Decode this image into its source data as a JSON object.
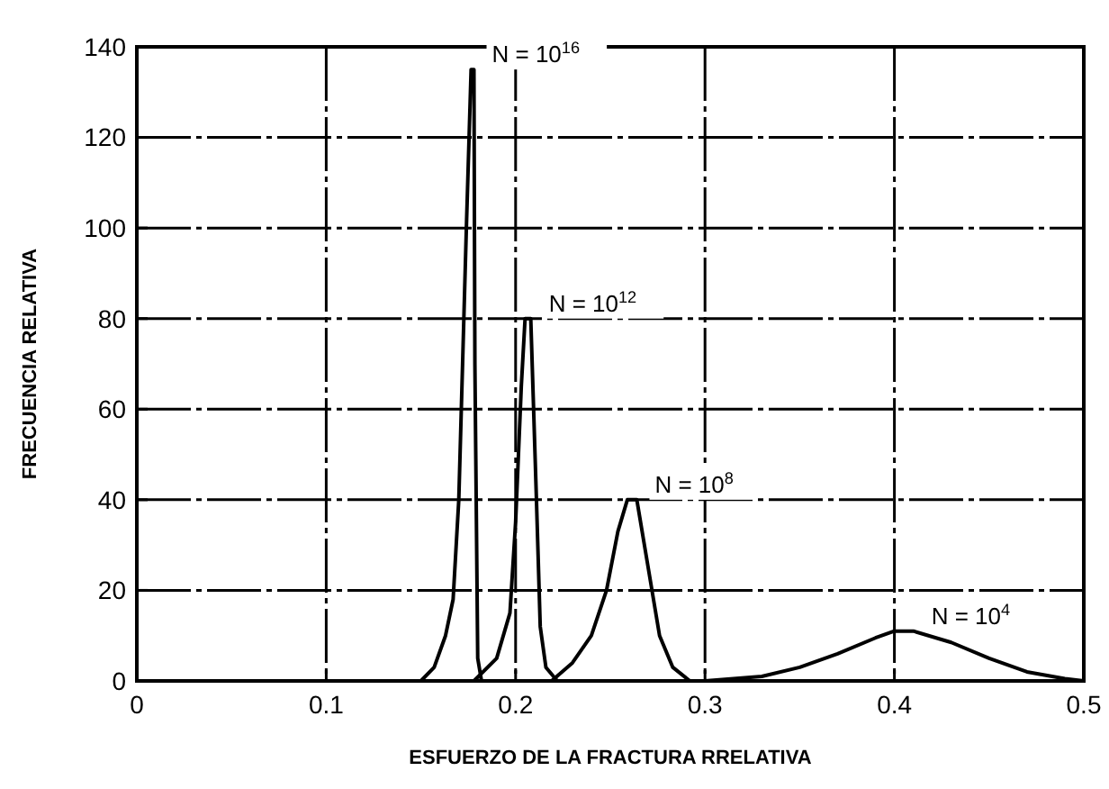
{
  "chart_data": {
    "type": "line",
    "xlabel": "ESFUERZO DE LA FRACTURA RRELATIVA",
    "ylabel": "FRECUENCIA RELATIVA",
    "xlim": [
      0,
      0.5
    ],
    "ylim": [
      0,
      140
    ],
    "xticks": [
      0,
      0.1,
      0.2,
      0.3,
      0.4,
      0.5
    ],
    "yticks": [
      0,
      20,
      40,
      60,
      80,
      100,
      120,
      140
    ],
    "grid": true,
    "line_style": "solid",
    "marker": "none",
    "series": [
      {
        "color": "#000000",
        "x": [
          0.15,
          0.157,
          0.163,
          0.167,
          0.17,
          0.174,
          0.1765,
          0.178,
          0.1785,
          0.18,
          0.182
        ],
        "values": [
          0,
          3,
          10,
          18,
          40,
          100,
          135,
          135,
          70,
          5,
          0
        ]
      },
      {
        "color": "#000000",
        "x": [
          0.178,
          0.19,
          0.197,
          0.2,
          0.203,
          0.205,
          0.208,
          0.211,
          0.213,
          0.216,
          0.222
        ],
        "values": [
          0,
          5,
          15,
          35,
          65,
          80,
          80,
          40,
          12,
          3,
          0
        ]
      },
      {
        "color": "#000000",
        "x": [
          0.219,
          0.23,
          0.24,
          0.248,
          0.254,
          0.259,
          0.264,
          0.27,
          0.276,
          0.283,
          0.292
        ],
        "values": [
          0,
          4,
          10,
          20,
          33,
          40,
          40,
          25,
          10,
          3,
          0
        ]
      },
      {
        "color": "#000000",
        "x": [
          0.3,
          0.33,
          0.35,
          0.37,
          0.39,
          0.4,
          0.41,
          0.43,
          0.45,
          0.47,
          0.49,
          0.5
        ],
        "values": [
          0,
          1,
          3,
          6,
          9.5,
          11,
          11,
          8.5,
          5,
          2,
          0.5,
          0
        ]
      }
    ],
    "annotations": [
      {
        "text": "N = 10$^{16}$",
        "x": 0.178,
        "y": 135
      },
      {
        "text": "N = 10$^{12}$",
        "x": 0.208,
        "y": 80
      },
      {
        "text": "N = 10$^{8}$",
        "x": 0.264,
        "y": 40
      },
      {
        "text": "N = 10$^{4}$",
        "x": 0.41,
        "y": 11
      }
    ]
  }
}
